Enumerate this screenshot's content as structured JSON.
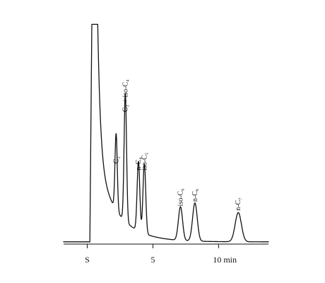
{
  "chart_data": {
    "type": "line",
    "title": "",
    "xlabel": "",
    "ylabel": "",
    "x_unit": "min",
    "xlim": [
      -1.8,
      13.8
    ],
    "ylim": [
      0,
      100
    ],
    "ticks": [
      {
        "x": 0,
        "label": "S"
      },
      {
        "x": 5,
        "label": "5"
      },
      {
        "x": 10,
        "label": "10 min"
      }
    ],
    "baseline": 1,
    "peaks": [
      {
        "label": "",
        "rt": 0.35,
        "height": 97,
        "note": "solvent"
      },
      {
        "label": "C₂",
        "rt": 2.2,
        "height": 34
      },
      {
        "label": "C₃ + iso-C₄",
        "rt": 2.9,
        "height": 57
      },
      {
        "label": "n-C₄",
        "rt": 3.9,
        "height": 31
      },
      {
        "label": "iso-C₅",
        "rt": 4.35,
        "height": 31
      },
      {
        "label": "iso-C₆",
        "rt": 7.1,
        "height": 15
      },
      {
        "label": "n-C₆",
        "rt": 8.2,
        "height": 17
      },
      {
        "label": "n-C₇",
        "rt": 11.5,
        "height": 13
      }
    ]
  }
}
